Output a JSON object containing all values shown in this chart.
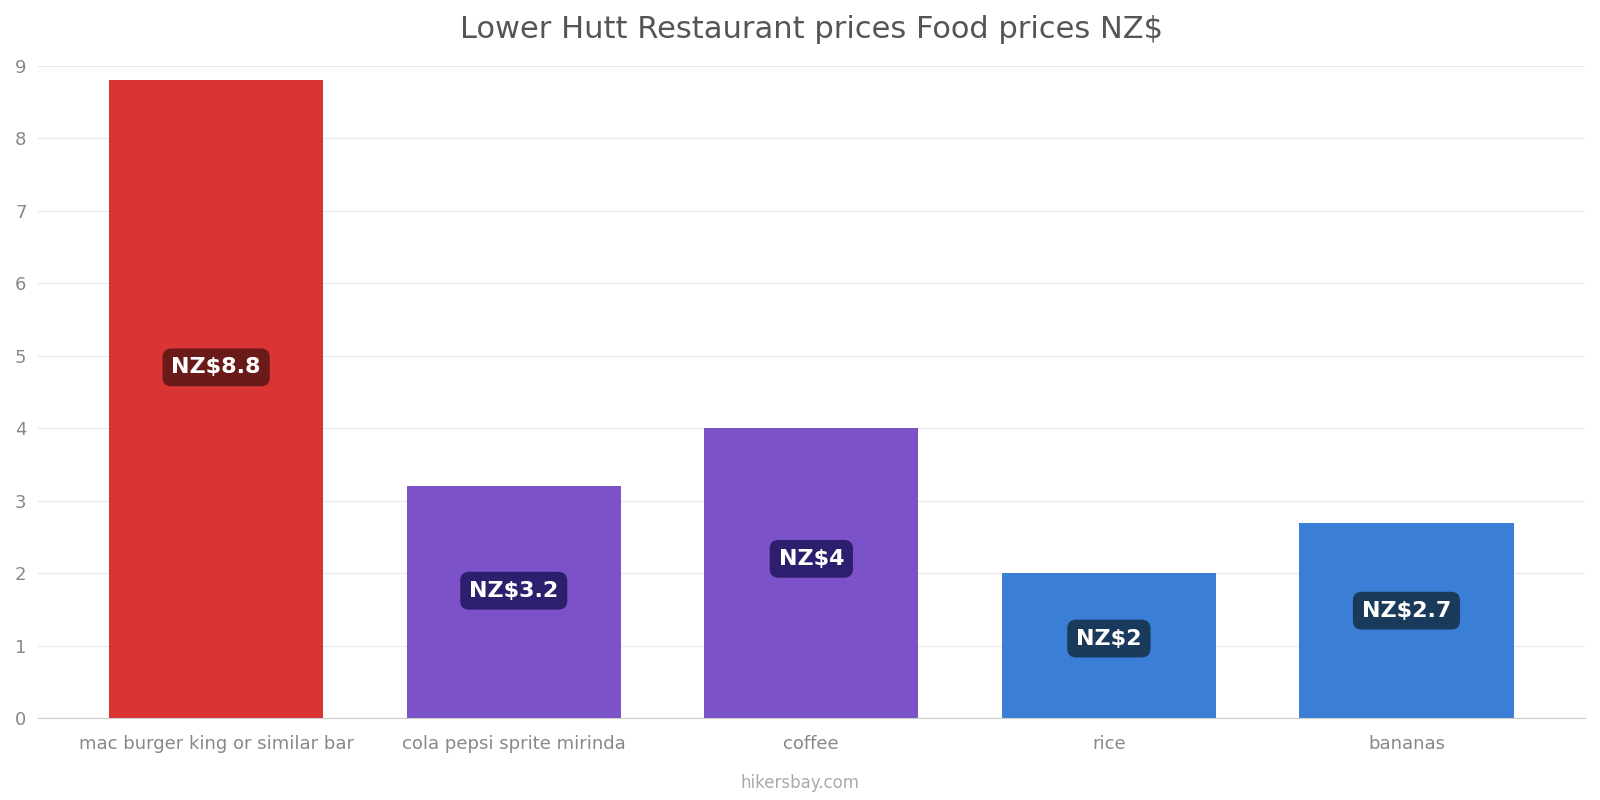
{
  "title": "Lower Hutt Restaurant prices Food prices NZ$",
  "categories": [
    "mac burger king or similar bar",
    "cola pepsi sprite mirinda",
    "coffee",
    "rice",
    "bananas"
  ],
  "values": [
    8.8,
    3.2,
    4.0,
    2.0,
    2.7
  ],
  "bar_colors": [
    "#d93535",
    "#7b52c8",
    "#7b52c8",
    "#3a7fd5",
    "#3a7fd5"
  ],
  "label_box_colors": [
    "#6b1a1a",
    "#2d1f6e",
    "#2d1f6e",
    "#1a3a5c",
    "#1a3a5c"
  ],
  "labels": [
    "NZ$8.8",
    "NZ$3.2",
    "NZ$4",
    "NZ$2",
    "NZ$2.7"
  ],
  "ylim": [
    0,
    9
  ],
  "yticks": [
    0,
    1,
    2,
    3,
    4,
    5,
    6,
    7,
    8,
    9
  ],
  "title_fontsize": 22,
  "tick_fontsize": 13,
  "label_fontsize": 16,
  "background_color": "#ffffff",
  "grid_color": "#e8e8e8",
  "footer_text": "hikersbay.com",
  "footer_color": "#aaaaaa",
  "bar_width": 0.72
}
